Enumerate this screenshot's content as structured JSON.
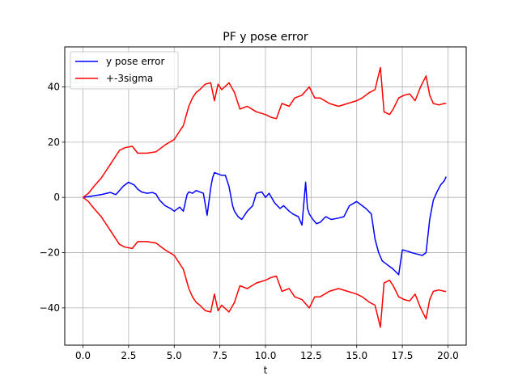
{
  "chart_data": {
    "type": "line",
    "title": "PF y pose error",
    "xlabel": "t",
    "ylabel": "",
    "xlim": [
      -1.0,
      21.0
    ],
    "ylim": [
      -53.5,
      54.5
    ],
    "xticks": [
      0.0,
      2.5,
      5.0,
      7.5,
      10.0,
      12.5,
      15.0,
      17.5,
      20.0
    ],
    "xtick_labels": [
      "0.0",
      "2.5",
      "5.0",
      "7.5",
      "10.0",
      "12.5",
      "15.0",
      "17.5",
      "20.0"
    ],
    "yticks": [
      -40,
      -20,
      0,
      20,
      40
    ],
    "ytick_labels": [
      "−40",
      "−20",
      "0",
      "20",
      "40"
    ],
    "grid": true,
    "legend_position": "top-left",
    "series": [
      {
        "name": "y pose error",
        "color": "#0000ff",
        "x": [
          0,
          0.5,
          1.0,
          1.3,
          1.5,
          1.8,
          2.0,
          2.2,
          2.5,
          2.8,
          3.0,
          3.2,
          3.5,
          3.8,
          4.0,
          4.2,
          4.5,
          4.8,
          5.0,
          5.3,
          5.5,
          5.7,
          5.8,
          6.0,
          6.2,
          6.4,
          6.6,
          6.8,
          7.0,
          7.1,
          7.2,
          7.4,
          7.6,
          7.8,
          8.0,
          8.2,
          8.3,
          8.5,
          8.7,
          9.0,
          9.3,
          9.5,
          9.8,
          10.0,
          10.2,
          10.5,
          10.8,
          11.0,
          11.3,
          11.5,
          11.8,
          12.0,
          12.2,
          12.3,
          12.4,
          12.6,
          12.8,
          13.0,
          13.3,
          13.6,
          14.0,
          14.3,
          14.6,
          15.0,
          15.3,
          15.5,
          15.8,
          16.0,
          16.2,
          16.4,
          16.6,
          16.8,
          17.0,
          17.3,
          17.5,
          17.8,
          18.0,
          18.3,
          18.6,
          18.8,
          19.0,
          19.2,
          19.4,
          19.6,
          19.8,
          19.9
        ],
        "y": [
          0,
          0.5,
          1.0,
          1.5,
          1.8,
          1.0,
          2.5,
          4.0,
          5.5,
          4.5,
          3.0,
          2.0,
          1.5,
          1.8,
          1.2,
          -1.0,
          -3.0,
          -4.0,
          -5.0,
          -3.5,
          -5.0,
          1.0,
          2.0,
          1.5,
          2.5,
          2.0,
          1.5,
          -6.5,
          3.5,
          7.0,
          9.0,
          8.5,
          8.0,
          8.0,
          4.0,
          -3.0,
          -5.0,
          -7.0,
          -8.0,
          -5.0,
          -3.0,
          1.5,
          2.0,
          0.0,
          1.5,
          -2.0,
          -4.0,
          -3.0,
          -5.0,
          -6.0,
          -7.0,
          -10.0,
          5.5,
          -4.0,
          -6.0,
          -8.0,
          -9.5,
          -9.0,
          -7.0,
          -8.0,
          -7.5,
          -7.0,
          -3.0,
          -1.5,
          -3.0,
          -4.0,
          -6.0,
          -15.0,
          -20.0,
          -23.0,
          -24.0,
          -25.0,
          -26.0,
          -28.0,
          -19.0,
          -19.5,
          -20.0,
          -20.5,
          -21.0,
          -20.0,
          -8.0,
          -1.0,
          2.0,
          4.5,
          6.0,
          7.5
        ]
      },
      {
        "name": "+-3sigma",
        "color": "#ff0000",
        "x": [
          0,
          0.3,
          0.6,
          1.0,
          1.5,
          2.0,
          2.3,
          2.7,
          3.0,
          3.5,
          4.0,
          4.5,
          5.0,
          5.3,
          5.5,
          5.8,
          6.0,
          6.2,
          6.4,
          6.7,
          7.0,
          7.2,
          7.4,
          7.6,
          8.0,
          8.3,
          8.6,
          9.0,
          9.5,
          10.0,
          10.3,
          10.6,
          10.9,
          11.3,
          11.6,
          12.0,
          12.4,
          12.7,
          13.0,
          13.5,
          14.0,
          14.5,
          15.0,
          15.3,
          15.7,
          16.0,
          16.3,
          16.5,
          16.8,
          17.0,
          17.3,
          17.6,
          17.9,
          18.2,
          18.5,
          18.8,
          19.0,
          19.2,
          19.5,
          19.8,
          19.9
        ],
        "y": [
          0,
          1.5,
          4.0,
          7.0,
          12.0,
          17.0,
          18.0,
          18.5,
          16.0,
          16.0,
          16.5,
          19.0,
          21.0,
          24.0,
          26.0,
          33.0,
          36.0,
          38.0,
          39.0,
          41.0,
          41.5,
          35.0,
          41.0,
          39.0,
          41.5,
          38.0,
          32.0,
          33.0,
          31.0,
          30.0,
          29.0,
          28.5,
          34.0,
          33.0,
          36.0,
          37.0,
          40.0,
          36.0,
          36.0,
          34.0,
          33.0,
          34.0,
          35.0,
          36.0,
          38.0,
          39.0,
          47.0,
          31.0,
          30.0,
          32.0,
          36.0,
          37.0,
          37.5,
          35.0,
          40.0,
          44.0,
          37.0,
          34.0,
          33.5,
          34.0,
          34.0
        ]
      }
    ]
  }
}
